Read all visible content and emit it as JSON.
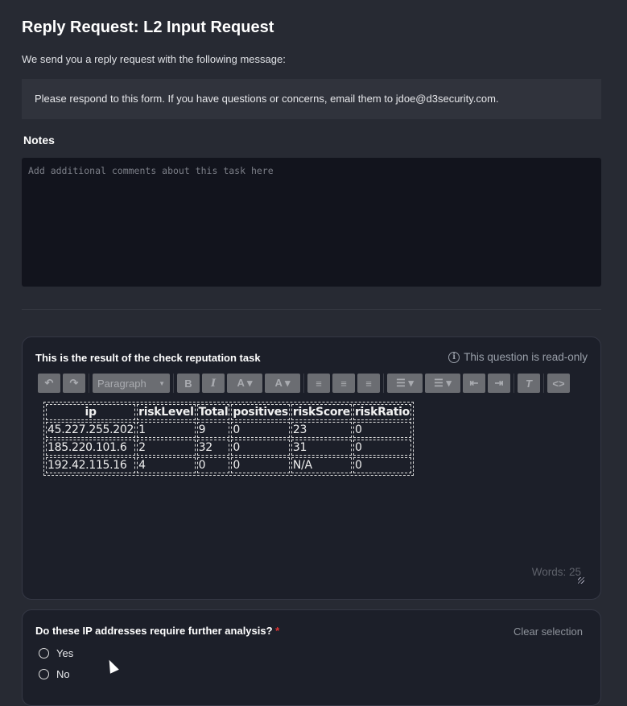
{
  "page": {
    "title": "Reply Request: L2 Input Request",
    "subtitle": "We send you a reply request with the following message:",
    "message": "Please respond to this form. If you have questions or concerns, email them to jdoe@d3security.com."
  },
  "notes": {
    "label": "Notes",
    "placeholder": "Add additional comments about this task here",
    "value": ""
  },
  "reputation": {
    "question": "This is the result of the check reputation task",
    "readonly_label": "This question is read-only",
    "words": "Words: 25",
    "toolbar": {
      "paragraph": "Paragraph"
    },
    "columns": [
      "ip",
      "riskLevel",
      "Total",
      "positives",
      "riskScore",
      "riskRatio"
    ],
    "rows": [
      [
        "45.227.255.202",
        "1",
        "9",
        "0",
        "23",
        "0"
      ],
      [
        "185.220.101.6",
        "2",
        "32",
        "0",
        "31",
        "0"
      ],
      [
        "192.42.115.16",
        "4",
        "0",
        "0",
        "N/A",
        "0"
      ]
    ]
  },
  "analysis": {
    "question": "Do these IP addresses require further analysis?",
    "required_mark": "*",
    "clear_label": "Clear selection",
    "options": [
      "Yes",
      "No"
    ],
    "selected": null
  }
}
